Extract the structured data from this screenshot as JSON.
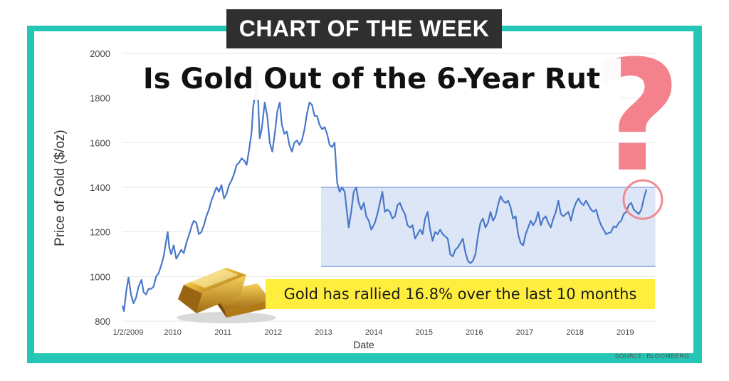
{
  "banner": {
    "text": "CHART OF THE WEEK"
  },
  "headline": {
    "text": "Is Gold Out of the 6-Year Rut"
  },
  "callout": {
    "text": "Gold has rallied 16.8% over the last 10 months"
  },
  "source": {
    "text": "SOURCE: BLOOMBERG"
  },
  "decor": {
    "question_mark": "?",
    "question_color": "#f4828c",
    "frame_color": "#26c6b6",
    "gold_bar_icon": "gold-bars"
  },
  "chart_data": {
    "type": "line",
    "title": "Is Gold Out of the 6-Year Rut",
    "xlabel": "Date",
    "ylabel": "Price of Gold ($/oz)",
    "ylim": [
      800,
      2000
    ],
    "yticks": [
      "2000",
      "1800",
      "1600",
      "1400",
      "1200",
      "1000",
      "800"
    ],
    "xticks": [
      {
        "label": "1/2/2009",
        "year": 2009.0
      },
      {
        "label": "2010",
        "year": 2010.0
      },
      {
        "label": "2011",
        "year": 2011.0
      },
      {
        "label": "2012",
        "year": 2012.0
      },
      {
        "label": "2013",
        "year": 2013.0
      },
      {
        "label": "2014",
        "year": 2014.0
      },
      {
        "label": "2015",
        "year": 2015.0
      },
      {
        "label": "2016",
        "year": 2016.0
      },
      {
        "label": "2017",
        "year": 2017.0
      },
      {
        "label": "2018",
        "year": 2018.0
      },
      {
        "label": "2019",
        "year": 2019.0
      }
    ],
    "xlim": [
      2009.0,
      2019.45
    ],
    "grid": "horizontal",
    "line_color": "#4a78c8",
    "range_band": {
      "from_year": 2012.95,
      "to_year": 2019.6,
      "low": 1045,
      "high": 1400,
      "color": "#dce6f6",
      "edge_color": "#7f9fd8"
    },
    "highlight_circle": {
      "year": 2019.35,
      "value": 1345,
      "color": "#f08a92"
    },
    "series": [
      {
        "values": [
          [
            2009.0,
            870
          ],
          [
            2009.03,
            845
          ],
          [
            2009.08,
            940
          ],
          [
            2009.12,
            995
          ],
          [
            2009.17,
            920
          ],
          [
            2009.22,
            880
          ],
          [
            2009.27,
            905
          ],
          [
            2009.32,
            955
          ],
          [
            2009.38,
            985
          ],
          [
            2009.42,
            930
          ],
          [
            2009.47,
            920
          ],
          [
            2009.52,
            945
          ],
          [
            2009.57,
            945
          ],
          [
            2009.62,
            955
          ],
          [
            2009.67,
            1000
          ],
          [
            2009.72,
            1015
          ],
          [
            2009.77,
            1050
          ],
          [
            2009.82,
            1090
          ],
          [
            2009.87,
            1160
          ],
          [
            2009.9,
            1200
          ],
          [
            2009.93,
            1130
          ],
          [
            2009.97,
            1100
          ],
          [
            2010.02,
            1140
          ],
          [
            2010.07,
            1080
          ],
          [
            2010.12,
            1100
          ],
          [
            2010.17,
            1120
          ],
          [
            2010.22,
            1105
          ],
          [
            2010.27,
            1150
          ],
          [
            2010.33,
            1190
          ],
          [
            2010.38,
            1230
          ],
          [
            2010.42,
            1250
          ],
          [
            2010.47,
            1240
          ],
          [
            2010.52,
            1190
          ],
          [
            2010.57,
            1200
          ],
          [
            2010.62,
            1230
          ],
          [
            2010.67,
            1270
          ],
          [
            2010.72,
            1300
          ],
          [
            2010.77,
            1340
          ],
          [
            2010.82,
            1370
          ],
          [
            2010.87,
            1400
          ],
          [
            2010.92,
            1380
          ],
          [
            2010.97,
            1410
          ],
          [
            2011.02,
            1350
          ],
          [
            2011.07,
            1370
          ],
          [
            2011.12,
            1410
          ],
          [
            2011.17,
            1430
          ],
          [
            2011.22,
            1460
          ],
          [
            2011.27,
            1500
          ],
          [
            2011.32,
            1510
          ],
          [
            2011.37,
            1530
          ],
          [
            2011.42,
            1520
          ],
          [
            2011.47,
            1500
          ],
          [
            2011.52,
            1570
          ],
          [
            2011.57,
            1650
          ],
          [
            2011.6,
            1760
          ],
          [
            2011.63,
            1800
          ],
          [
            2011.67,
            1890
          ],
          [
            2011.7,
            1780
          ],
          [
            2011.73,
            1620
          ],
          [
            2011.77,
            1660
          ],
          [
            2011.8,
            1720
          ],
          [
            2011.83,
            1780
          ],
          [
            2011.88,
            1720
          ],
          [
            2011.93,
            1600
          ],
          [
            2011.98,
            1560
          ],
          [
            2012.03,
            1640
          ],
          [
            2012.08,
            1740
          ],
          [
            2012.13,
            1780
          ],
          [
            2012.17,
            1680
          ],
          [
            2012.22,
            1640
          ],
          [
            2012.27,
            1650
          ],
          [
            2012.32,
            1590
          ],
          [
            2012.37,
            1560
          ],
          [
            2012.42,
            1600
          ],
          [
            2012.47,
            1610
          ],
          [
            2012.52,
            1590
          ],
          [
            2012.57,
            1610
          ],
          [
            2012.62,
            1660
          ],
          [
            2012.67,
            1730
          ],
          [
            2012.72,
            1780
          ],
          [
            2012.77,
            1770
          ],
          [
            2012.82,
            1720
          ],
          [
            2012.87,
            1720
          ],
          [
            2012.92,
            1680
          ],
          [
            2012.97,
            1660
          ],
          [
            2013.02,
            1670
          ],
          [
            2013.07,
            1640
          ],
          [
            2013.12,
            1590
          ],
          [
            2013.17,
            1580
          ],
          [
            2013.22,
            1600
          ],
          [
            2013.27,
            1420
          ],
          [
            2013.32,
            1380
          ],
          [
            2013.37,
            1400
          ],
          [
            2013.42,
            1380
          ],
          [
            2013.47,
            1280
          ],
          [
            2013.5,
            1220
          ],
          [
            2013.55,
            1290
          ],
          [
            2013.6,
            1380
          ],
          [
            2013.65,
            1400
          ],
          [
            2013.7,
            1330
          ],
          [
            2013.75,
            1300
          ],
          [
            2013.8,
            1330
          ],
          [
            2013.85,
            1270
          ],
          [
            2013.9,
            1250
          ],
          [
            2013.95,
            1210
          ],
          [
            2014.02,
            1240
          ],
          [
            2014.07,
            1280
          ],
          [
            2014.12,
            1330
          ],
          [
            2014.17,
            1380
          ],
          [
            2014.22,
            1290
          ],
          [
            2014.27,
            1300
          ],
          [
            2014.32,
            1290
          ],
          [
            2014.37,
            1260
          ],
          [
            2014.42,
            1270
          ],
          [
            2014.47,
            1320
          ],
          [
            2014.52,
            1330
          ],
          [
            2014.57,
            1300
          ],
          [
            2014.62,
            1280
          ],
          [
            2014.67,
            1230
          ],
          [
            2014.72,
            1220
          ],
          [
            2014.77,
            1230
          ],
          [
            2014.82,
            1170
          ],
          [
            2014.87,
            1190
          ],
          [
            2014.92,
            1210
          ],
          [
            2014.97,
            1190
          ],
          [
            2015.02,
            1260
          ],
          [
            2015.07,
            1290
          ],
          [
            2015.12,
            1210
          ],
          [
            2015.17,
            1160
          ],
          [
            2015.22,
            1200
          ],
          [
            2015.27,
            1190
          ],
          [
            2015.32,
            1210
          ],
          [
            2015.37,
            1190
          ],
          [
            2015.42,
            1180
          ],
          [
            2015.47,
            1170
          ],
          [
            2015.52,
            1100
          ],
          [
            2015.57,
            1090
          ],
          [
            2015.62,
            1120
          ],
          [
            2015.67,
            1130
          ],
          [
            2015.72,
            1150
          ],
          [
            2015.77,
            1170
          ],
          [
            2015.82,
            1110
          ],
          [
            2015.87,
            1070
          ],
          [
            2015.92,
            1060
          ],
          [
            2015.97,
            1070
          ],
          [
            2016.02,
            1100
          ],
          [
            2016.07,
            1180
          ],
          [
            2016.12,
            1240
          ],
          [
            2016.17,
            1260
          ],
          [
            2016.22,
            1220
          ],
          [
            2016.27,
            1240
          ],
          [
            2016.32,
            1290
          ],
          [
            2016.37,
            1250
          ],
          [
            2016.42,
            1270
          ],
          [
            2016.47,
            1320
          ],
          [
            2016.52,
            1360
          ],
          [
            2016.57,
            1340
          ],
          [
            2016.62,
            1330
          ],
          [
            2016.67,
            1340
          ],
          [
            2016.72,
            1310
          ],
          [
            2016.77,
            1260
          ],
          [
            2016.82,
            1270
          ],
          [
            2016.87,
            1190
          ],
          [
            2016.92,
            1150
          ],
          [
            2016.97,
            1140
          ],
          [
            2017.02,
            1190
          ],
          [
            2017.07,
            1220
          ],
          [
            2017.12,
            1250
          ],
          [
            2017.17,
            1230
          ],
          [
            2017.22,
            1250
          ],
          [
            2017.27,
            1290
          ],
          [
            2017.32,
            1230
          ],
          [
            2017.37,
            1260
          ],
          [
            2017.42,
            1270
          ],
          [
            2017.47,
            1240
          ],
          [
            2017.52,
            1220
          ],
          [
            2017.57,
            1260
          ],
          [
            2017.62,
            1290
          ],
          [
            2017.67,
            1340
          ],
          [
            2017.72,
            1280
          ],
          [
            2017.77,
            1270
          ],
          [
            2017.82,
            1280
          ],
          [
            2017.87,
            1290
          ],
          [
            2017.92,
            1250
          ],
          [
            2017.97,
            1300
          ],
          [
            2018.02,
            1330
          ],
          [
            2018.07,
            1350
          ],
          [
            2018.12,
            1330
          ],
          [
            2018.17,
            1320
          ],
          [
            2018.22,
            1340
          ],
          [
            2018.27,
            1320
          ],
          [
            2018.32,
            1300
          ],
          [
            2018.37,
            1290
          ],
          [
            2018.42,
            1300
          ],
          [
            2018.47,
            1260
          ],
          [
            2018.52,
            1230
          ],
          [
            2018.57,
            1210
          ],
          [
            2018.62,
            1190
          ],
          [
            2018.67,
            1195
          ],
          [
            2018.72,
            1200
          ],
          [
            2018.77,
            1225
          ],
          [
            2018.82,
            1220
          ],
          [
            2018.87,
            1240
          ],
          [
            2018.92,
            1250
          ],
          [
            2018.97,
            1280
          ],
          [
            2019.02,
            1290
          ],
          [
            2019.07,
            1320
          ],
          [
            2019.12,
            1330
          ],
          [
            2019.17,
            1300
          ],
          [
            2019.22,
            1290
          ],
          [
            2019.27,
            1280
          ],
          [
            2019.32,
            1300
          ],
          [
            2019.37,
            1350
          ],
          [
            2019.42,
            1390
          ]
        ]
      }
    ]
  }
}
